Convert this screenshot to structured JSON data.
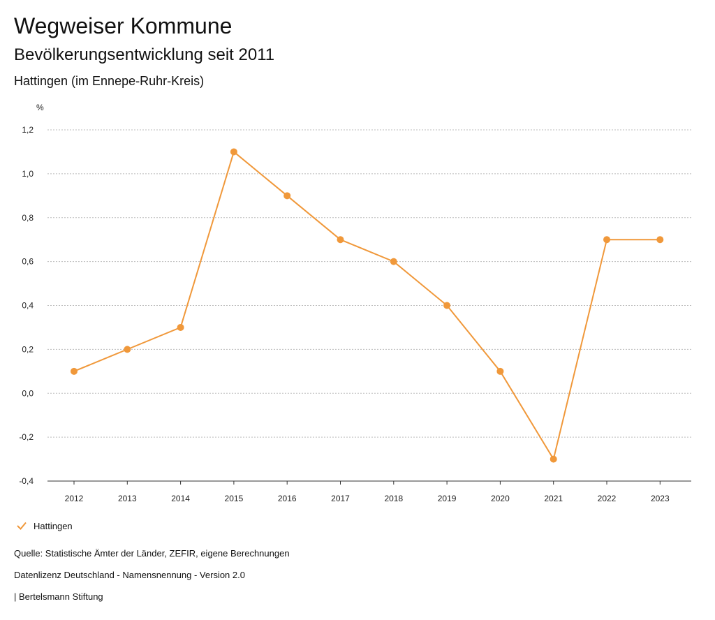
{
  "header": {
    "title": "Wegweiser Kommune",
    "subtitle": "Bevölkerungsentwicklung seit 2011",
    "place": "Hattingen (im Ennepe-Ruhr-Kreis)"
  },
  "legend": {
    "label": "Hattingen",
    "icon": "check-icon"
  },
  "footer": {
    "source": "Quelle: Statistische Ämter der Länder, ZEFIR, eigene Berechnungen",
    "license": "Datenlizenz Deutschland - Namensnennung - Version 2.0",
    "publisher": "| Bertelsmann Stiftung"
  },
  "colors": {
    "series": "#f0983a",
    "grid": "#bbbbbb",
    "axis": "#333333"
  },
  "chart_data": {
    "type": "line",
    "unit_label": "%",
    "categories": [
      "2012",
      "2013",
      "2014",
      "2015",
      "2016",
      "2017",
      "2018",
      "2019",
      "2020",
      "2021",
      "2022",
      "2023"
    ],
    "series": [
      {
        "name": "Hattingen",
        "values": [
          0.1,
          0.2,
          0.3,
          1.1,
          0.9,
          0.7,
          0.6,
          0.4,
          0.1,
          -0.3,
          0.7,
          0.7
        ]
      }
    ],
    "y_ticks": [
      "1,2",
      "1,0",
      "0,8",
      "0,6",
      "0,4",
      "0,2",
      "0,0",
      "-0,2",
      "-0,4"
    ],
    "ylim": [
      -0.4,
      1.2
    ],
    "grid": true,
    "legend_position": "bottom-left"
  }
}
